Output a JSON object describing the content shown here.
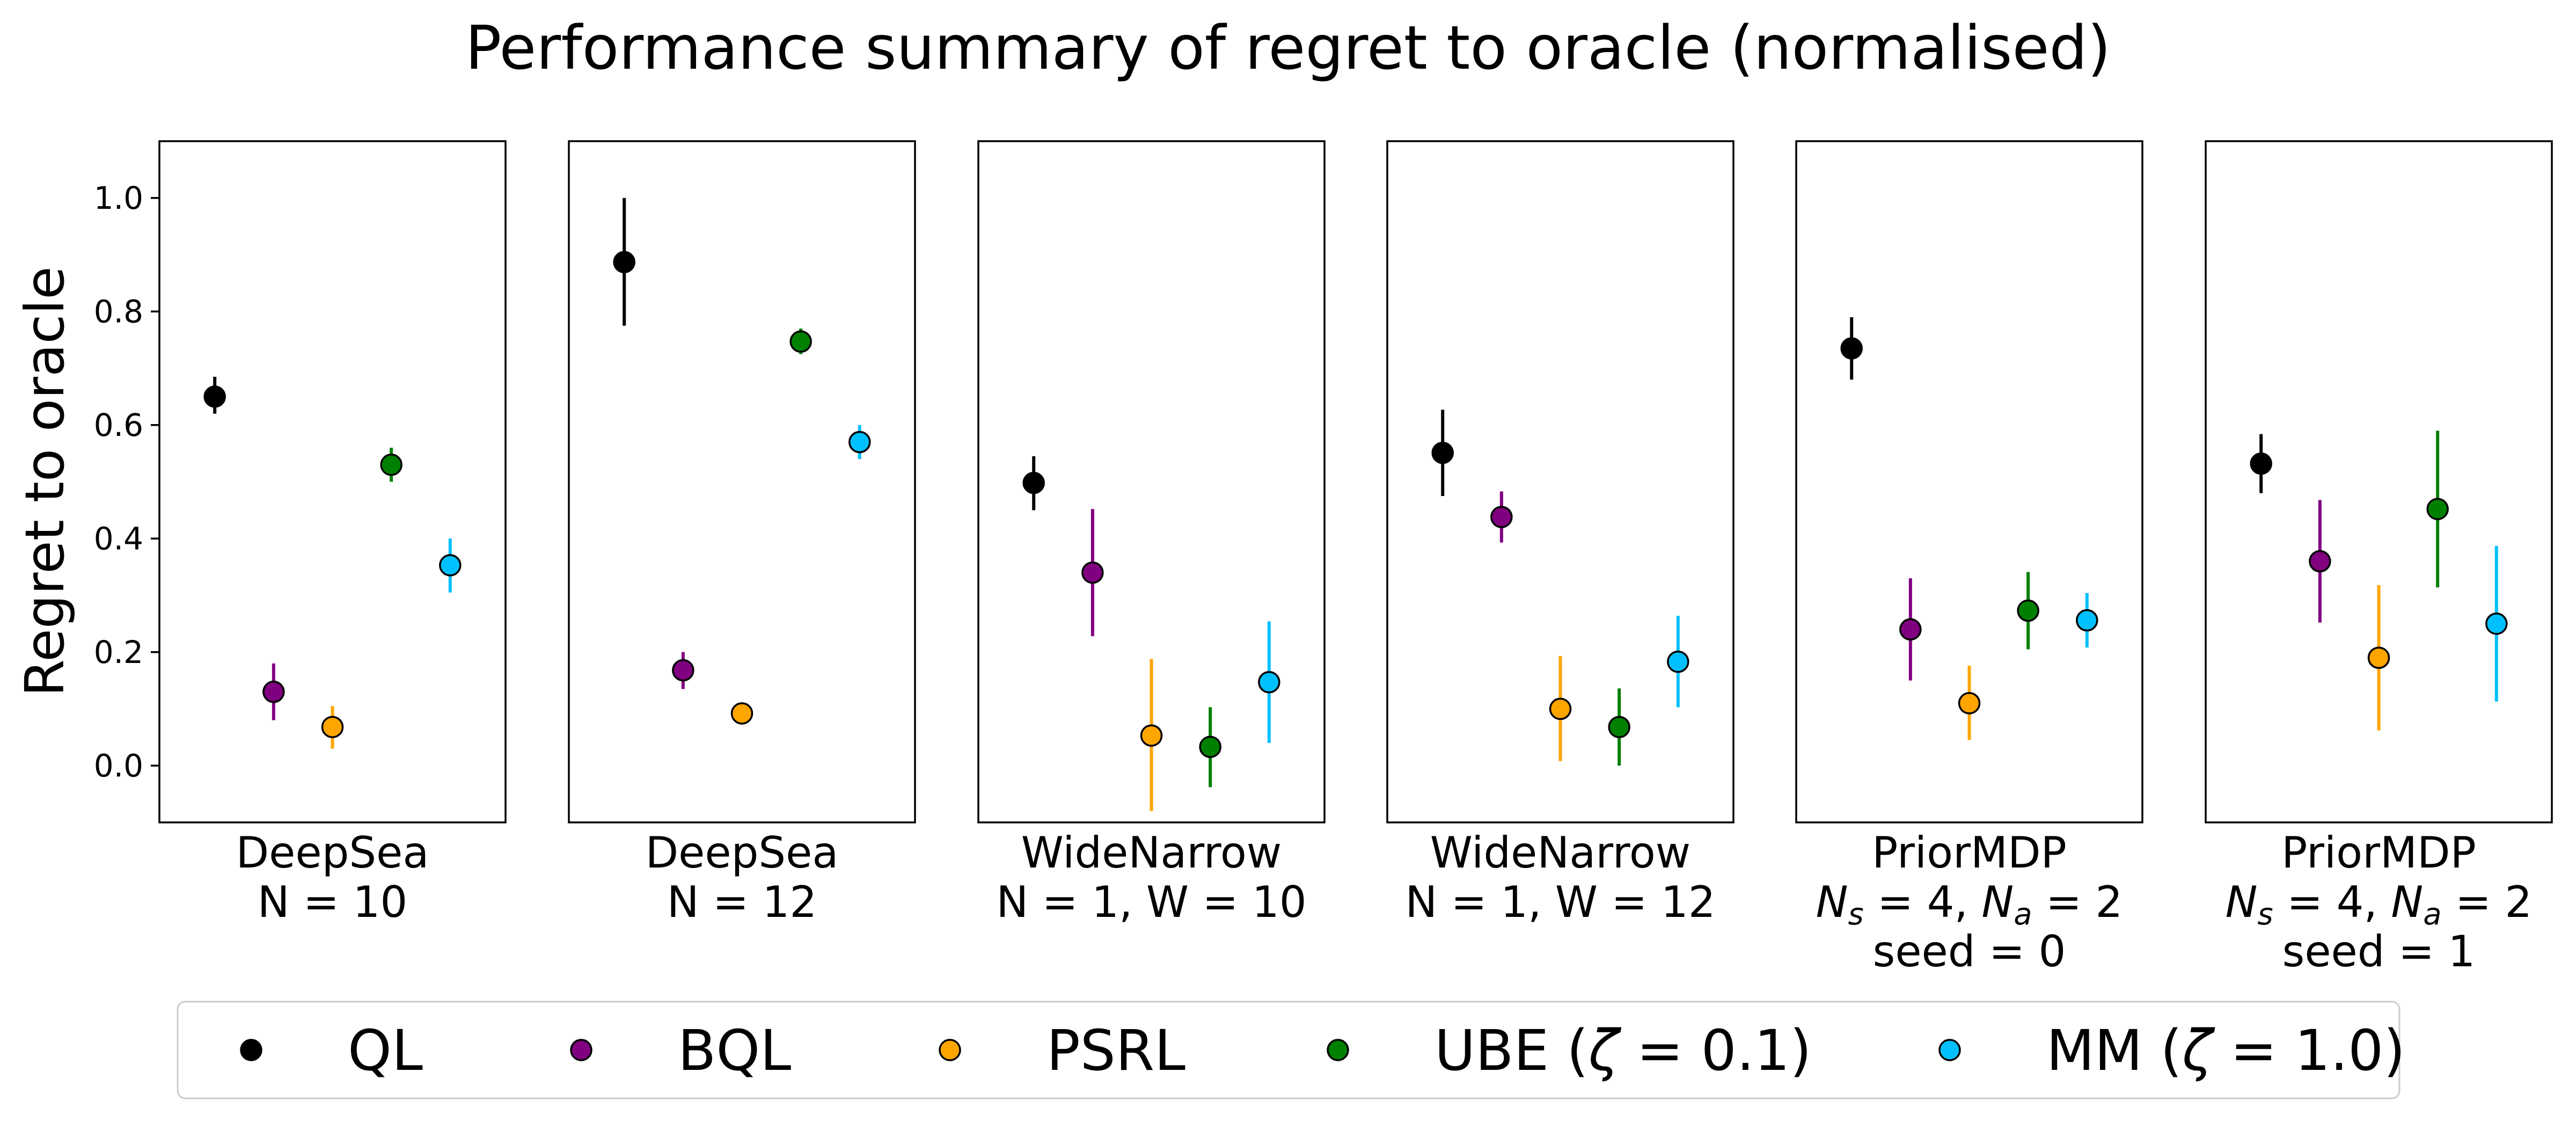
{
  "chart_data": {
    "type": "scatter",
    "title": "Performance summary of regret to oracle (normalised)",
    "ylabel": "Regret to oracle",
    "ylim": [
      -0.1,
      1.1
    ],
    "yticks": [
      0.0,
      0.2,
      0.4,
      0.6,
      0.8,
      1.0
    ],
    "ytick_labels": [
      "0.0",
      "0.2",
      "0.4",
      "0.6",
      "0.8",
      "1.0"
    ],
    "grid": false,
    "legend_position": "bottom",
    "series": [
      {
        "name": "QL",
        "color": "#000000"
      },
      {
        "name": "BQL",
        "color": "#800080"
      },
      {
        "name": "PSRL",
        "color": "#FFA500"
      },
      {
        "name": "UBE (ζ = 0.1)",
        "color": "#008000"
      },
      {
        "name": "MM (ζ = 1.0)",
        "color": "#00BFFF"
      }
    ],
    "legend_items": [
      {
        "name_main": "QL",
        "name_zeta": "",
        "name_eq": "",
        "name_tail": ""
      },
      {
        "name_main": "BQL",
        "name_zeta": "",
        "name_eq": "",
        "name_tail": ""
      },
      {
        "name_main": "PSRL",
        "name_zeta": "",
        "name_eq": "",
        "name_tail": ""
      },
      {
        "name_main": "UBE (",
        "name_zeta": "ζ",
        "name_eq": " = 0.1",
        "name_tail": ")"
      },
      {
        "name_main": "MM (",
        "name_zeta": "ζ",
        "name_eq": " = 1.0",
        "name_tail": ")"
      }
    ],
    "panels": [
      {
        "label_lines": [
          {
            "text": "DeepSea"
          },
          {
            "text": "N = 10"
          }
        ],
        "points": [
          {
            "series": "QL",
            "y": 0.65,
            "err_low": 0.62,
            "err_high": 0.685
          },
          {
            "series": "BQL",
            "y": 0.13,
            "err_low": 0.08,
            "err_high": 0.18
          },
          {
            "series": "PSRL",
            "y": 0.068,
            "err_low": 0.03,
            "err_high": 0.105
          },
          {
            "series": "UBE (ζ = 0.1)",
            "y": 0.53,
            "err_low": 0.5,
            "err_high": 0.56
          },
          {
            "series": "MM (ζ = 1.0)",
            "y": 0.353,
            "err_low": 0.305,
            "err_high": 0.4
          }
        ]
      },
      {
        "label_lines": [
          {
            "text": "DeepSea"
          },
          {
            "text": "N = 12"
          }
        ],
        "points": [
          {
            "series": "QL",
            "y": 0.887,
            "err_low": 0.775,
            "err_high": 1.0
          },
          {
            "series": "BQL",
            "y": 0.168,
            "err_low": 0.135,
            "err_high": 0.2
          },
          {
            "series": "PSRL",
            "y": 0.092,
            "err_low": 0.085,
            "err_high": 0.1
          },
          {
            "series": "UBE (ζ = 0.1)",
            "y": 0.747,
            "err_low": 0.725,
            "err_high": 0.77
          },
          {
            "series": "MM (ζ = 1.0)",
            "y": 0.57,
            "err_low": 0.54,
            "err_high": 0.6
          }
        ]
      },
      {
        "label_lines": [
          {
            "text": "WideNarrow"
          },
          {
            "text": "N = 1, W = 10"
          }
        ],
        "points": [
          {
            "series": "QL",
            "y": 0.498,
            "err_low": 0.45,
            "err_high": 0.545
          },
          {
            "series": "BQL",
            "y": 0.34,
            "err_low": 0.228,
            "err_high": 0.452
          },
          {
            "series": "PSRL",
            "y": 0.053,
            "err_low": -0.08,
            "err_high": 0.188
          },
          {
            "series": "UBE (ζ = 0.1)",
            "y": 0.033,
            "err_low": -0.038,
            "err_high": 0.103
          },
          {
            "series": "MM (ζ = 1.0)",
            "y": 0.147,
            "err_low": 0.04,
            "err_high": 0.254
          }
        ]
      },
      {
        "label_lines": [
          {
            "text": "WideNarrow"
          },
          {
            "text": "N = 1, W = 12"
          }
        ],
        "points": [
          {
            "series": "QL",
            "y": 0.551,
            "err_low": 0.475,
            "err_high": 0.627
          },
          {
            "series": "BQL",
            "y": 0.438,
            "err_low": 0.393,
            "err_high": 0.483
          },
          {
            "series": "PSRL",
            "y": 0.1,
            "err_low": 0.008,
            "err_high": 0.193
          },
          {
            "series": "UBE (ζ = 0.1)",
            "y": 0.068,
            "err_low": 0.0,
            "err_high": 0.136
          },
          {
            "series": "MM (ζ = 1.0)",
            "y": 0.183,
            "err_low": 0.103,
            "err_high": 0.264
          }
        ]
      },
      {
        "label_lines": [
          {
            "text": "PriorMDP"
          },
          {
            "text": "Ns = 4, Na = 2",
            "math": {
              "a": "N",
              "asub": "s",
              "eq1": " = 4, ",
              "b": "N",
              "bsub": "a",
              "eq2": " = 2"
            }
          },
          {
            "text": "seed = 0"
          }
        ],
        "points": [
          {
            "series": "QL",
            "y": 0.735,
            "err_low": 0.68,
            "err_high": 0.79
          },
          {
            "series": "BQL",
            "y": 0.24,
            "err_low": 0.15,
            "err_high": 0.33
          },
          {
            "series": "PSRL",
            "y": 0.11,
            "err_low": 0.045,
            "err_high": 0.176
          },
          {
            "series": "UBE (ζ = 0.1)",
            "y": 0.273,
            "err_low": 0.205,
            "err_high": 0.341
          },
          {
            "series": "MM (ζ = 1.0)",
            "y": 0.256,
            "err_low": 0.208,
            "err_high": 0.304
          }
        ]
      },
      {
        "label_lines": [
          {
            "text": "PriorMDP"
          },
          {
            "text": "Ns = 4, Na = 2",
            "math": {
              "a": "N",
              "asub": "s",
              "eq1": " = 4, ",
              "b": "N",
              "bsub": "a",
              "eq2": " = 2"
            }
          },
          {
            "text": "seed = 1"
          }
        ],
        "points": [
          {
            "series": "QL",
            "y": 0.532,
            "err_low": 0.48,
            "err_high": 0.584
          },
          {
            "series": "BQL",
            "y": 0.36,
            "err_low": 0.252,
            "err_high": 0.468
          },
          {
            "series": "PSRL",
            "y": 0.19,
            "err_low": 0.062,
            "err_high": 0.318
          },
          {
            "series": "UBE (ζ = 0.1)",
            "y": 0.452,
            "err_low": 0.314,
            "err_high": 0.59
          },
          {
            "series": "MM (ζ = 1.0)",
            "y": 0.25,
            "err_low": 0.113,
            "err_high": 0.387
          }
        ]
      }
    ]
  }
}
